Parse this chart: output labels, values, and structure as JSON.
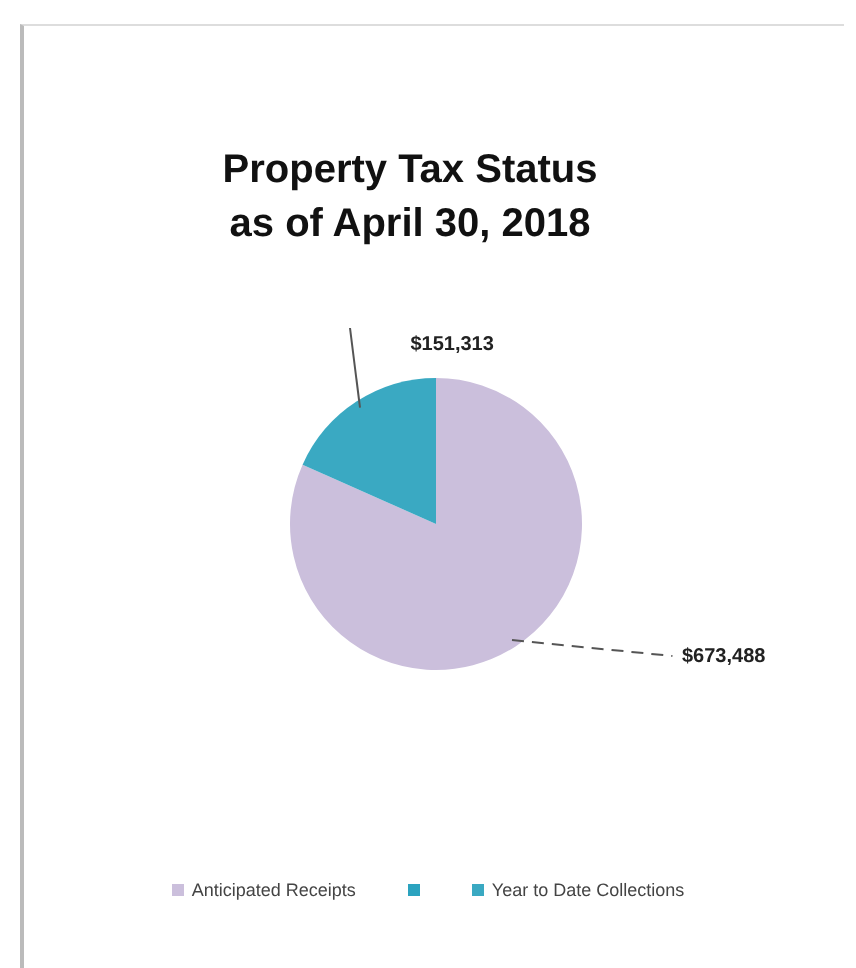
{
  "chart_data": {
    "type": "pie",
    "title": "Property Tax Status as of April 30, 2018",
    "categories": [
      "Anticipated Receipts",
      null,
      "Year to Date Collections"
    ],
    "values": [
      673488,
      0,
      151313
    ],
    "colors": [
      "#cbbfdc",
      "#2ba3bf",
      "#3aa9c2"
    ],
    "value_labels": [
      "$673,488",
      null,
      "$151,313"
    ],
    "legend": "bottom"
  }
}
